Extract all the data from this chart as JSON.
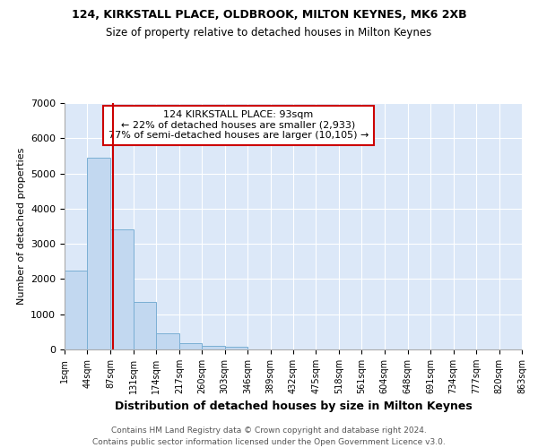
{
  "title1": "124, KIRKSTALL PLACE, OLDBROOK, MILTON KEYNES, MK6 2XB",
  "title2": "Size of property relative to detached houses in Milton Keynes",
  "xlabel": "Distribution of detached houses by size in Milton Keynes",
  "ylabel": "Number of detached properties",
  "annotation_title": "124 KIRKSTALL PLACE: 93sqm",
  "annotation_line1": "← 22% of detached houses are smaller (2,933)",
  "annotation_line2": "77% of semi-detached houses are larger (10,105) →",
  "footer1": "Contains HM Land Registry data © Crown copyright and database right 2024.",
  "footer2": "Contains public sector information licensed under the Open Government Licence v3.0.",
  "property_sqm": 93,
  "bin_edges": [
    1,
    44,
    87,
    131,
    174,
    217,
    260,
    303,
    346,
    389,
    432,
    475,
    518,
    561,
    604,
    648,
    691,
    734,
    777,
    820,
    863
  ],
  "bar_values": [
    2250,
    5450,
    3400,
    1350,
    450,
    175,
    100,
    75,
    0,
    0,
    0,
    0,
    0,
    0,
    0,
    0,
    0,
    0,
    0,
    0
  ],
  "bar_color": "#c2d8f0",
  "bar_edge_color": "#7aafd4",
  "vline_color": "#cc0000",
  "bg_color": "#dce8f8",
  "ylim": [
    0,
    7000
  ],
  "yticks": [
    0,
    1000,
    2000,
    3000,
    4000,
    5000,
    6000,
    7000
  ]
}
